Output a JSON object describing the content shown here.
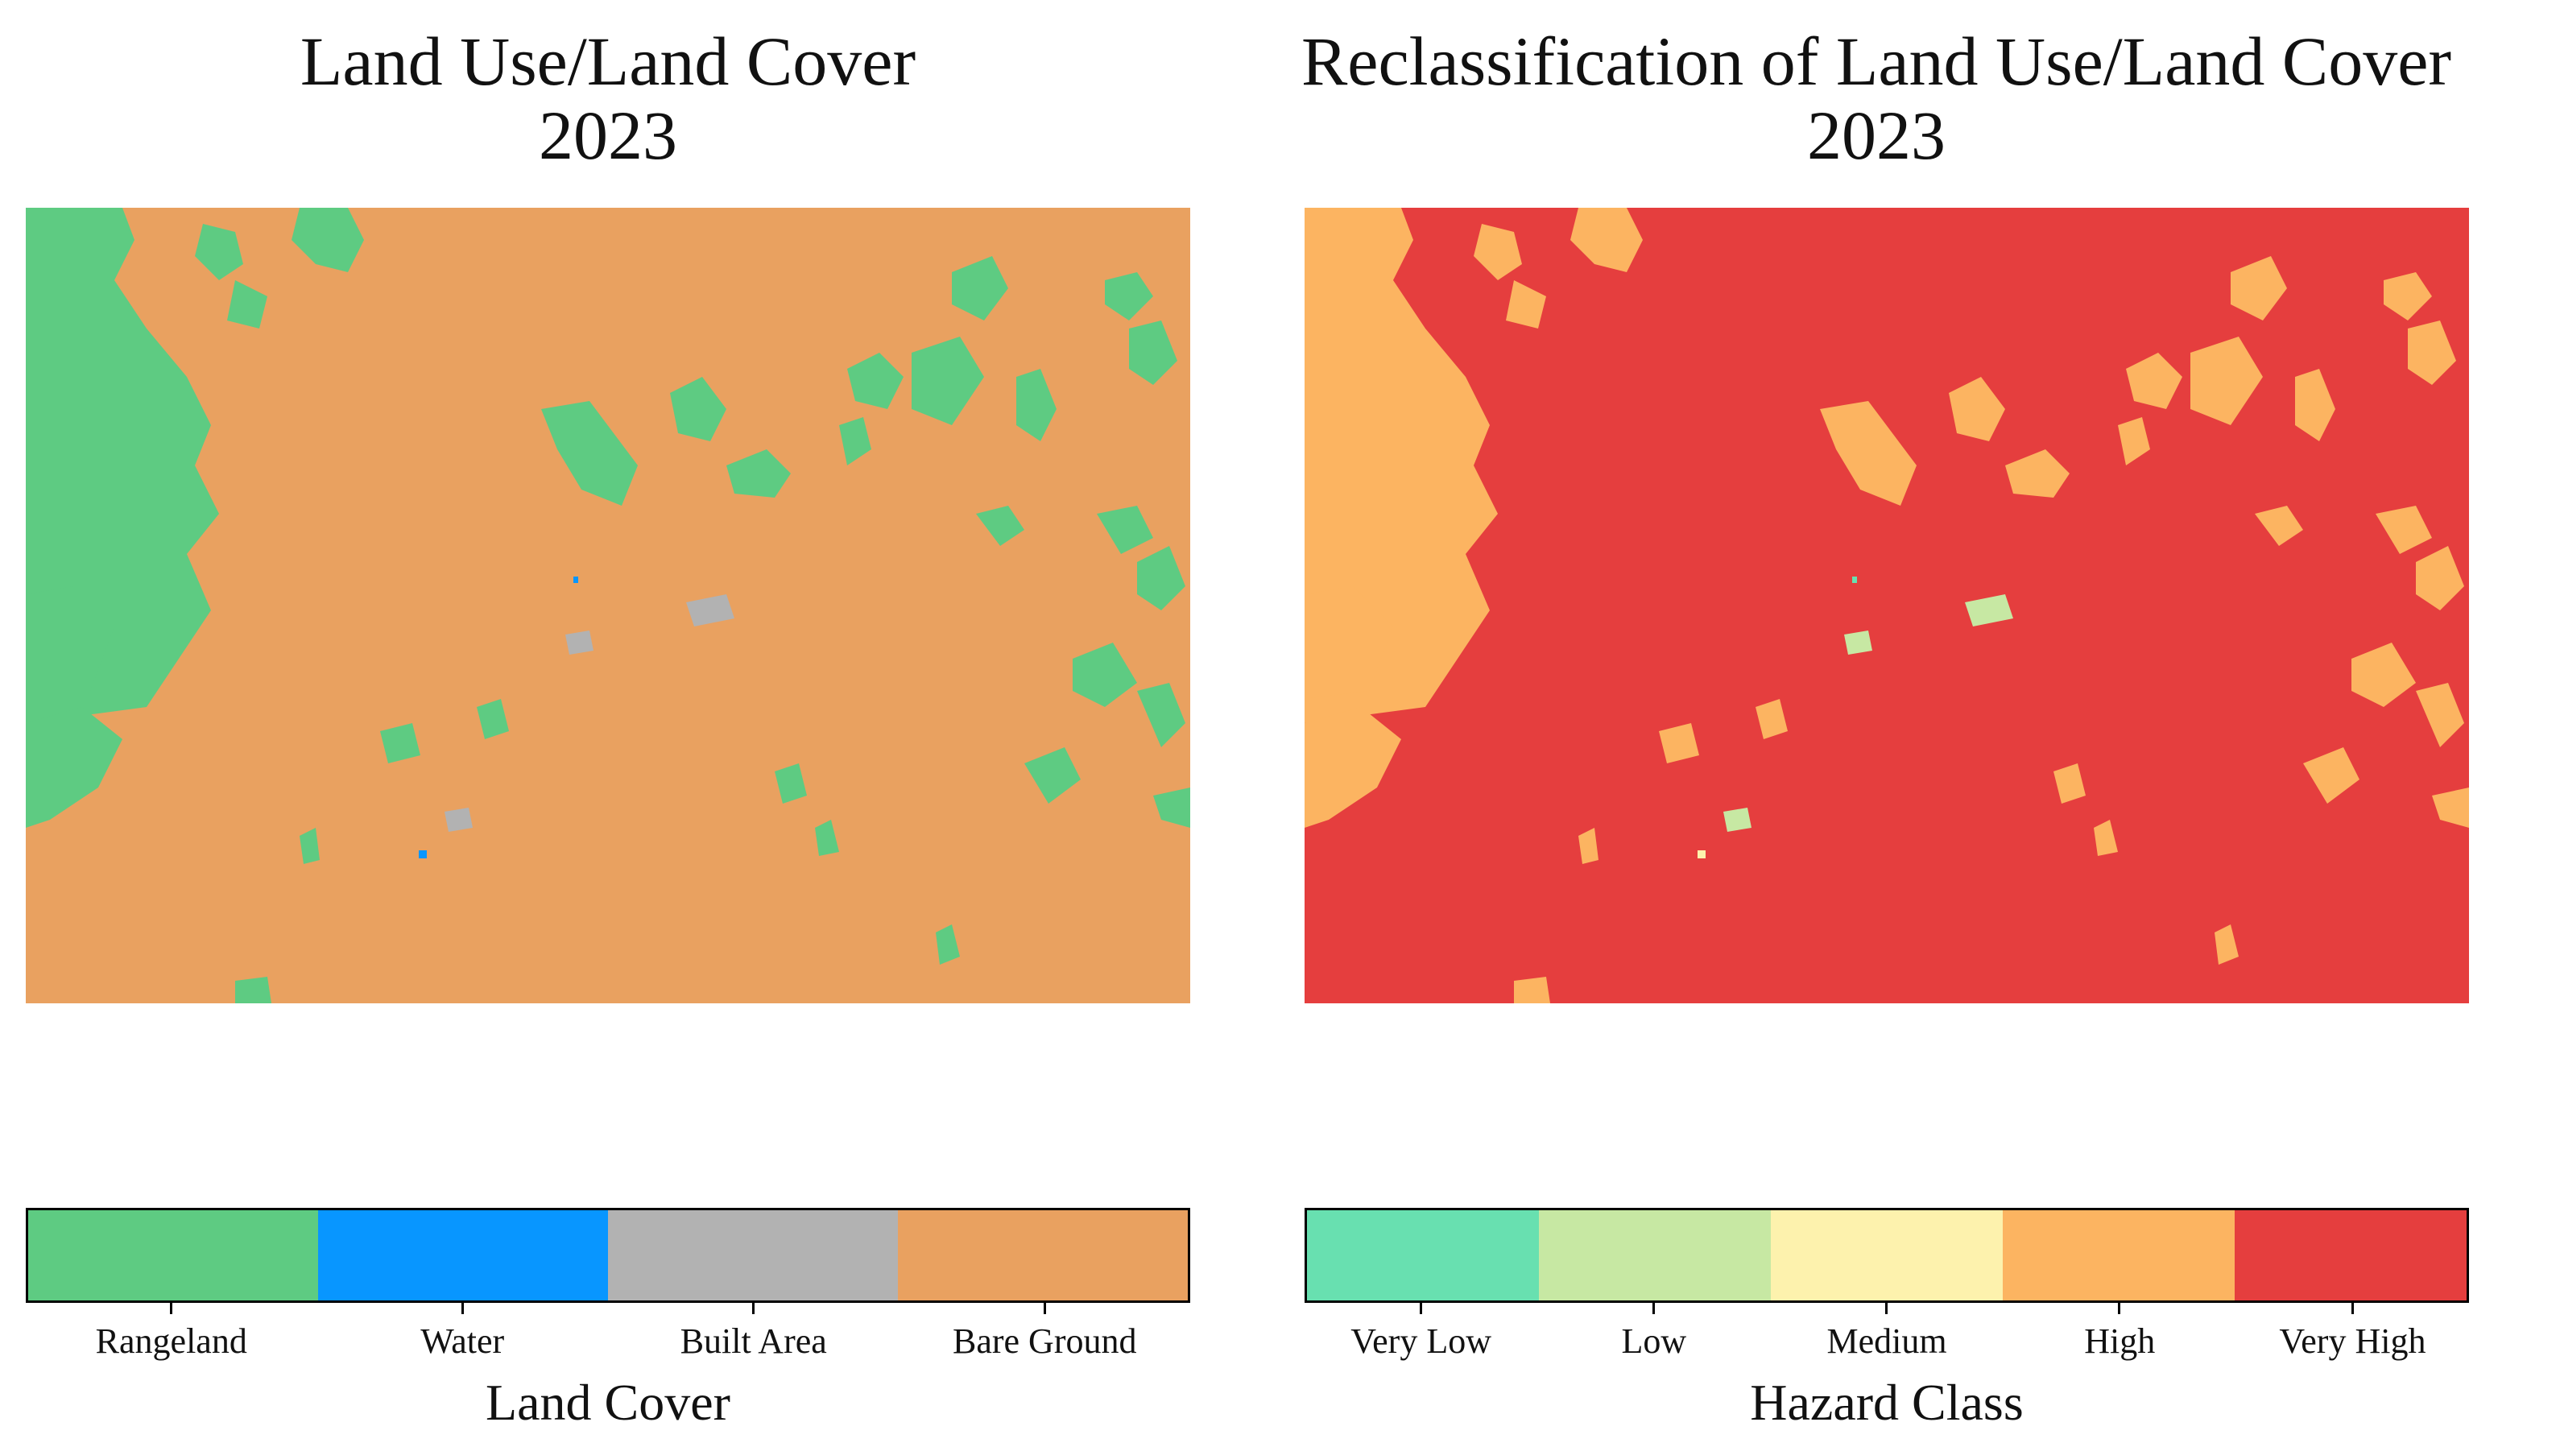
{
  "left_panel": {
    "title_line1": "Land Use/Land Cover",
    "title_line2": "2023",
    "legend_title": "Land Cover",
    "classes": [
      {
        "label": "Rangeland",
        "color": "#5ecb82"
      },
      {
        "label": "Water",
        "color": "#0896ff"
      },
      {
        "label": "Built Area",
        "color": "#b2b2b2"
      },
      {
        "label": "Bare Ground",
        "color": "#e9a160"
      }
    ]
  },
  "right_panel": {
    "title_line1": "Reclassification of Land Use/Land Cover",
    "title_line2": "2023",
    "legend_title": "Hazard Class",
    "classes": [
      {
        "label": "Very Low",
        "color": "#68e0b0"
      },
      {
        "label": "Low",
        "color": "#c7e8a3"
      },
      {
        "label": "Medium",
        "color": "#fdf2ad"
      },
      {
        "label": "High",
        "color": "#fcb461"
      },
      {
        "label": "Very High",
        "color": "#e53e3e"
      }
    ]
  }
}
